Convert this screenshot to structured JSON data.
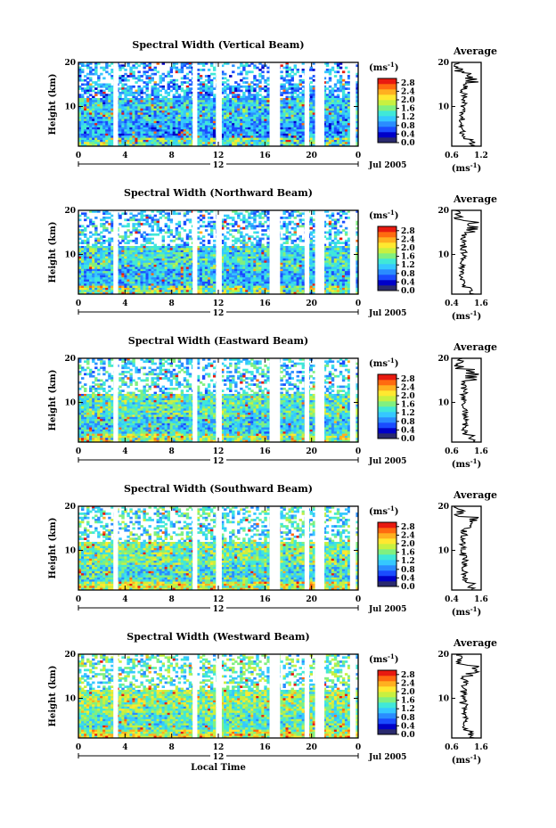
{
  "chart_data": [
    {
      "type": "heatmap",
      "title": "Spectral Width (Vertical Beam)",
      "ylabel": "Height (km)",
      "x_ticks": [
        "0",
        "4",
        "8",
        "12",
        "16",
        "20",
        "0"
      ],
      "date_label": "12",
      "date_suffix": "Jul 2005",
      "colorbar": {
        "unit": "(ms",
        "unit_exp": "-1",
        "unit_close": ")",
        "ticks": [
          "2.8",
          "2.4",
          "2.0",
          "1.6",
          "1.2",
          "0.8",
          "0.4",
          "0.0"
        ]
      },
      "y_ticks": [
        "20",
        "10"
      ],
      "profile": {
        "title": "Average",
        "xlabel": "(ms",
        "xlabel_exp": "-1",
        "xlabel_close": ")",
        "x_ticks": [
          "0.6",
          "1.2"
        ],
        "xlim": [
          0.6,
          1.2
        ],
        "y_ticks": [
          "20",
          "10"
        ]
      }
    },
    {
      "type": "heatmap",
      "title": "Spectral Width (Northward Beam)",
      "ylabel": "Height (km)",
      "x_ticks": [
        "0",
        "4",
        "8",
        "12",
        "16",
        "20",
        "0"
      ],
      "date_label": "12",
      "date_suffix": "Jul 2005",
      "colorbar": {
        "unit": "(ms",
        "unit_exp": "-1",
        "unit_close": ")",
        "ticks": [
          "2.8",
          "2.4",
          "2.0",
          "1.6",
          "1.2",
          "0.8",
          "0.4",
          "0.0"
        ]
      },
      "y_ticks": [
        "20",
        "10"
      ],
      "profile": {
        "title": "Average",
        "xlabel": "(ms",
        "xlabel_exp": "-1",
        "xlabel_close": ")",
        "x_ticks": [
          "0.4",
          "1.6"
        ],
        "xlim": [
          0.4,
          1.6
        ],
        "y_ticks": [
          "20",
          "10"
        ]
      }
    },
    {
      "type": "heatmap",
      "title": "Spectral Width (Eastward Beam)",
      "ylabel": "Height (km)",
      "x_ticks": [
        "0",
        "4",
        "8",
        "12",
        "16",
        "20",
        "0"
      ],
      "date_label": "12",
      "date_suffix": "Jul 2005",
      "colorbar": {
        "unit": "(ms",
        "unit_exp": "-1",
        "unit_close": ")",
        "ticks": [
          "2.8",
          "2.4",
          "2.0",
          "1.6",
          "1.2",
          "0.8",
          "0.4",
          "0.0"
        ]
      },
      "y_ticks": [
        "20",
        "10"
      ],
      "profile": {
        "title": "Average",
        "xlabel": "(ms",
        "xlabel_exp": "-1",
        "xlabel_close": ")",
        "x_ticks": [
          "0.6",
          "1.6"
        ],
        "xlim": [
          0.6,
          1.6
        ],
        "y_ticks": [
          "20",
          "10"
        ]
      }
    },
    {
      "type": "heatmap",
      "title": "Spectral Width (Southward Beam)",
      "ylabel": "Height (km)",
      "x_ticks": [
        "0",
        "4",
        "8",
        "12",
        "16",
        "20",
        "0"
      ],
      "date_label": "12",
      "date_suffix": "Jul 2005",
      "colorbar": {
        "unit": "(ms",
        "unit_exp": "-1",
        "unit_close": ")",
        "ticks": [
          "2.8",
          "2.4",
          "2.0",
          "1.6",
          "1.2",
          "0.8",
          "0.4",
          "0.0"
        ]
      },
      "y_ticks": [
        "20",
        "10"
      ],
      "profile": {
        "title": "Average",
        "xlabel": "(ms",
        "xlabel_exp": "-1",
        "xlabel_close": ")",
        "x_ticks": [
          "0.4",
          "1.6"
        ],
        "xlim": [
          0.4,
          1.6
        ],
        "y_ticks": [
          "20",
          "10"
        ]
      }
    },
    {
      "type": "heatmap",
      "title": "Spectral Width (Westward Beam)",
      "ylabel": "Height (km)",
      "x_ticks": [
        "0",
        "4",
        "8",
        "12",
        "16",
        "20",
        "0"
      ],
      "date_label": "12",
      "date_suffix": "Jul 2005",
      "colorbar": {
        "unit": "(ms",
        "unit_exp": "-1",
        "unit_close": ")",
        "ticks": [
          "2.8",
          "2.4",
          "2.0",
          "1.6",
          "1.2",
          "0.8",
          "0.4",
          "0.0"
        ]
      },
      "y_ticks": [
        "20",
        "10"
      ],
      "profile": {
        "title": "Average",
        "xlabel": "(ms",
        "xlabel_exp": "-1",
        "xlabel_close": ")",
        "x_ticks": [
          "0.6",
          "1.6"
        ],
        "xlim": [
          0.6,
          1.6
        ],
        "y_ticks": [
          "20",
          "10"
        ]
      },
      "xlabel": "Local Time"
    }
  ],
  "shared": {
    "x_range_hours": [
      0,
      24
    ],
    "y_range_km": [
      1,
      20
    ],
    "color_range": [
      0.0,
      3.0
    ],
    "data_gaps_hours": [
      [
        3.0,
        3.4
      ],
      [
        9.8,
        10.2
      ],
      [
        11.8,
        12.3
      ],
      [
        16.4,
        17.3
      ],
      [
        19.4,
        19.8
      ],
      [
        20.3,
        21.1
      ],
      [
        23.3,
        23.8
      ]
    ],
    "colors": [
      "#2a2a6e",
      "#0000c8",
      "#1a4cff",
      "#2a8cff",
      "#35c8ff",
      "#40e8d8",
      "#80f080",
      "#c8f040",
      "#ffe830",
      "#ffb020",
      "#ff6a10",
      "#e81a10"
    ]
  }
}
